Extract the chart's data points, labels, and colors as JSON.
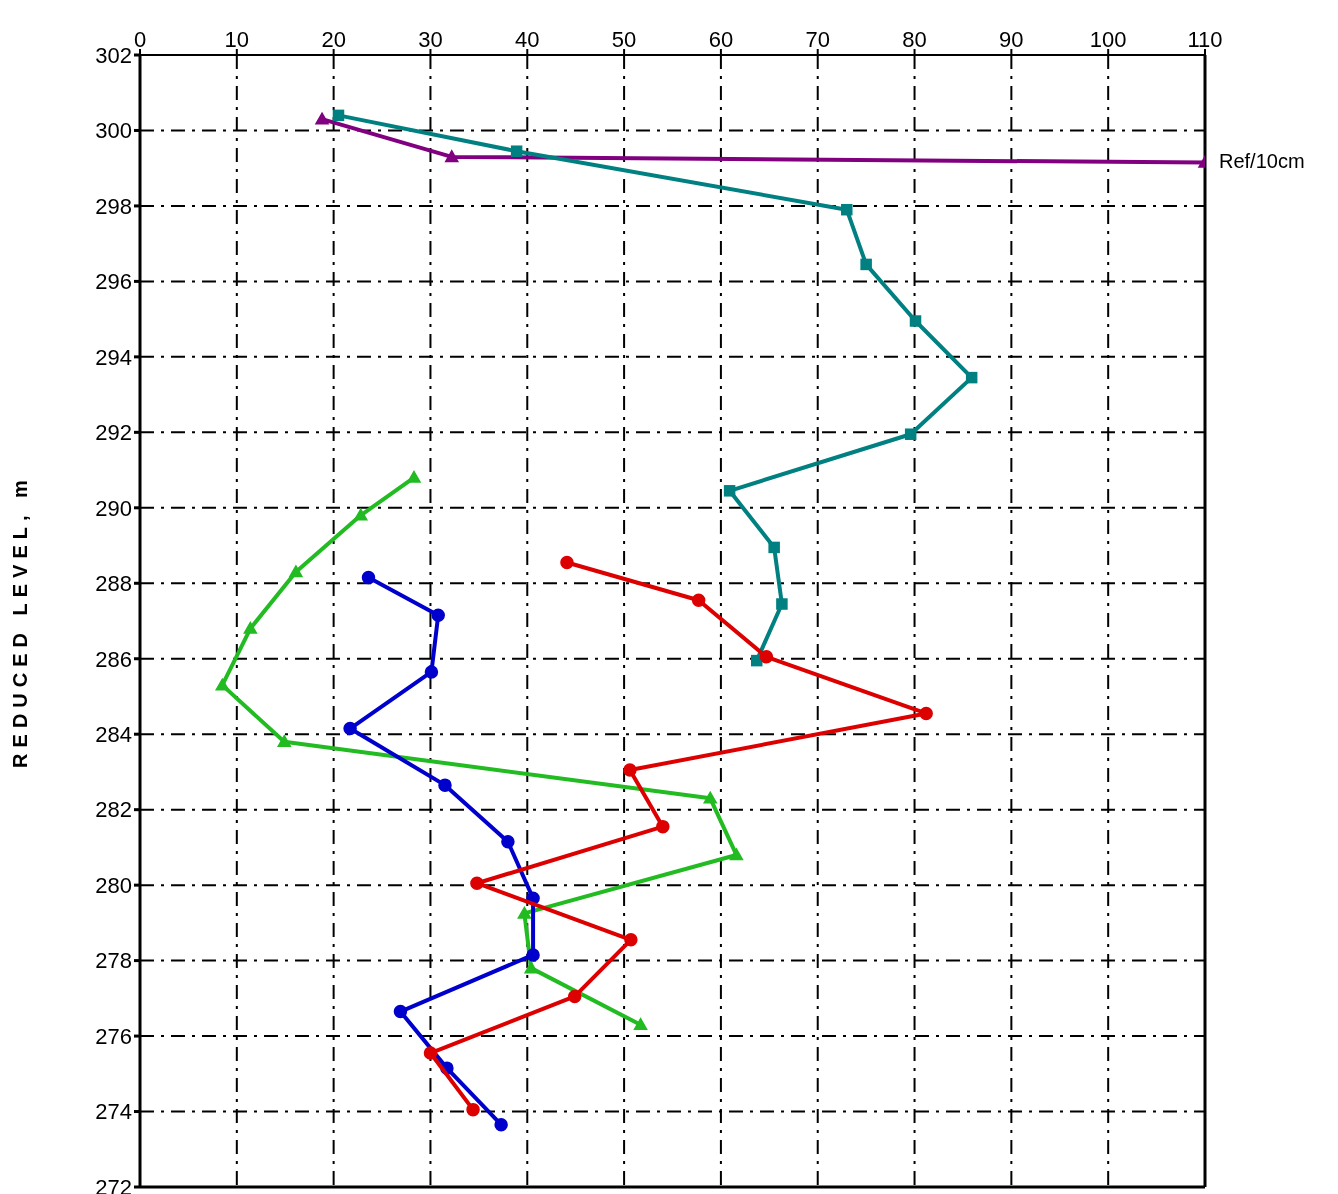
{
  "chart_data": {
    "type": "line",
    "ylabel": "REDUCED LEVEL, m",
    "xlim": [
      0,
      110
    ],
    "xticks": [
      0,
      10,
      20,
      30,
      40,
      50,
      60,
      70,
      80,
      90,
      100,
      110
    ],
    "ylim": [
      272,
      302
    ],
    "yticks": [
      272,
      274,
      276,
      278,
      280,
      282,
      284,
      286,
      288,
      290,
      292,
      294,
      296,
      298,
      300,
      302
    ],
    "grid": true,
    "line_style": "solid",
    "series": [
      {
        "name": "Ref/10cm",
        "color": "#800080",
        "marker": "triangle",
        "x": [
          18.8,
          32.2,
          110
        ],
        "values": [
          300.3,
          299.3,
          299.15
        ]
      },
      {
        "color": "#008080",
        "marker": "square",
        "x": [
          20.5,
          38.9,
          73.0,
          75.0,
          80.1,
          85.9,
          79.6,
          60.9,
          65.5,
          66.3,
          63.7
        ],
        "values": [
          300.4,
          299.45,
          297.9,
          296.45,
          294.95,
          293.45,
          291.95,
          290.45,
          288.95,
          287.45,
          285.95
        ]
      },
      {
        "color": "#22bb22",
        "marker": "triangle",
        "x": [
          28.3,
          22.8,
          16.1,
          11.4,
          8.5,
          14.9,
          58.9,
          61.6,
          39.7,
          40.4,
          51.7
        ],
        "values": [
          290.8,
          289.8,
          288.3,
          286.8,
          285.3,
          283.8,
          282.3,
          280.8,
          279.25,
          277.8,
          276.3
        ]
      },
      {
        "color": "#0000cc",
        "marker": "circle",
        "x": [
          23.6,
          30.8,
          30.1,
          21.7,
          31.5,
          38.0,
          40.6,
          40.6,
          26.9,
          31.7,
          37.3
        ],
        "values": [
          288.15,
          287.15,
          285.65,
          284.15,
          282.65,
          281.15,
          279.65,
          278.15,
          276.65,
          275.15,
          273.65
        ]
      },
      {
        "color": "#dd0000",
        "marker": "circle",
        "x": [
          44.1,
          57.7,
          64.7,
          81.2,
          50.6,
          54.0,
          34.8,
          50.7,
          44.9,
          30.0,
          34.4
        ],
        "values": [
          288.55,
          287.55,
          286.05,
          284.55,
          283.05,
          281.55,
          280.05,
          278.55,
          277.05,
          275.55,
          274.05
        ]
      }
    ]
  }
}
